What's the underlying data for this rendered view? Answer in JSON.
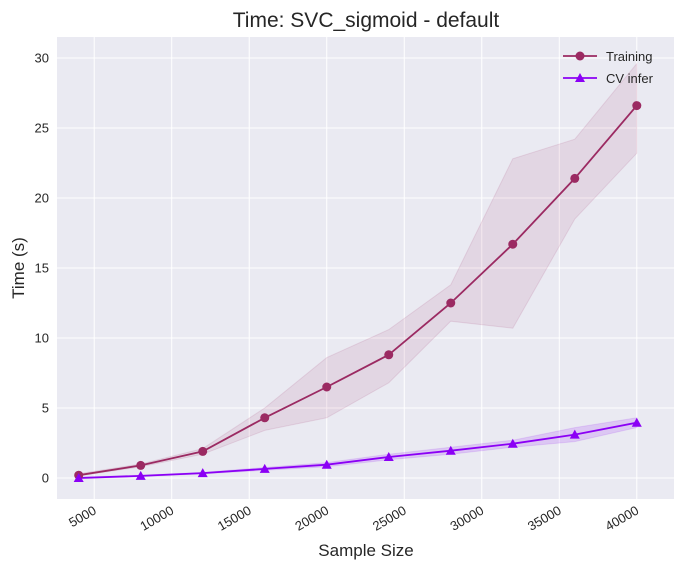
{
  "chart_data": {
    "type": "line",
    "title": "Time: SVC_sigmoid - default",
    "xlabel": "Sample Size",
    "ylabel": "Time (s)",
    "xlim": [
      2600,
      42400
    ],
    "ylim": [
      -1.5,
      31.5
    ],
    "x_ticks": [
      5000,
      10000,
      15000,
      20000,
      25000,
      30000,
      35000,
      40000
    ],
    "y_ticks": [
      0,
      5,
      10,
      15,
      20,
      25,
      30
    ],
    "x_tick_rotation": 30,
    "grid": true,
    "legend_position": "top-right",
    "x": [
      4000,
      8000,
      12000,
      16000,
      20000,
      24000,
      28000,
      32000,
      36000,
      40000
    ],
    "series": [
      {
        "name": "Training",
        "color": "#9b2a62",
        "marker": "circle",
        "values": [
          0.2,
          0.9,
          1.9,
          4.3,
          6.5,
          8.8,
          12.5,
          16.7,
          21.4,
          26.6
        ],
        "lower": [
          0.15,
          0.8,
          1.7,
          3.4,
          4.3,
          6.8,
          11.2,
          10.7,
          18.5,
          23.2
        ],
        "upper": [
          0.3,
          1.0,
          2.1,
          5.0,
          8.6,
          10.6,
          13.8,
          22.8,
          24.2,
          29.6
        ]
      },
      {
        "name": "CV infer",
        "color": "#8b00f5",
        "marker": "triangle",
        "values": [
          0.0,
          0.15,
          0.35,
          0.65,
          0.95,
          1.5,
          1.95,
          2.45,
          3.1,
          3.95
        ],
        "lower": [
          -0.05,
          0.1,
          0.3,
          0.55,
          0.8,
          1.3,
          1.7,
          2.2,
          2.6,
          3.6
        ],
        "upper": [
          0.05,
          0.2,
          0.4,
          0.75,
          1.1,
          1.7,
          2.2,
          2.7,
          3.6,
          4.3
        ]
      }
    ]
  }
}
